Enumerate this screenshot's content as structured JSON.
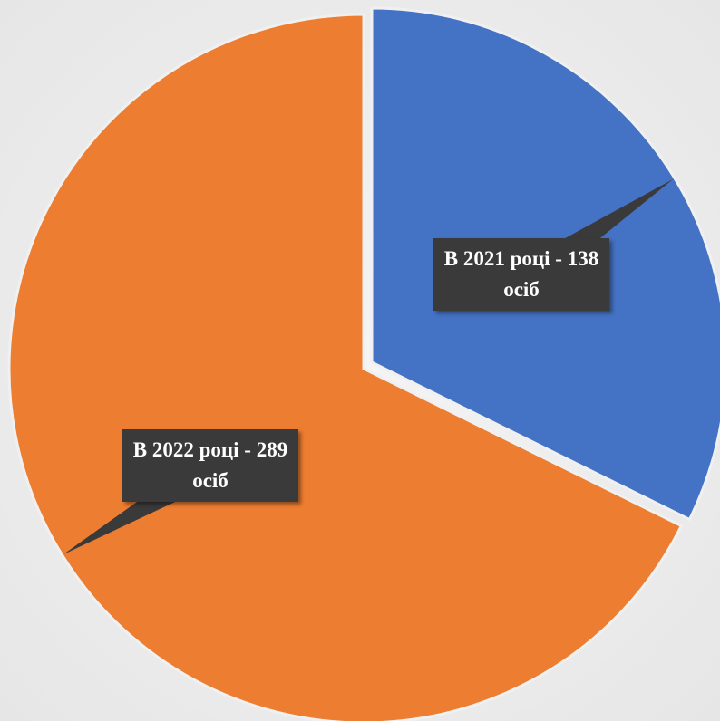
{
  "chart_data": {
    "type": "pie",
    "values": [
      138,
      289
    ],
    "value_labels": [
      "В 2021 році - 138 осіб",
      "В 2022 році - 289 осіб"
    ],
    "colors": [
      "#4472c4",
      "#ed7d31"
    ]
  }
}
